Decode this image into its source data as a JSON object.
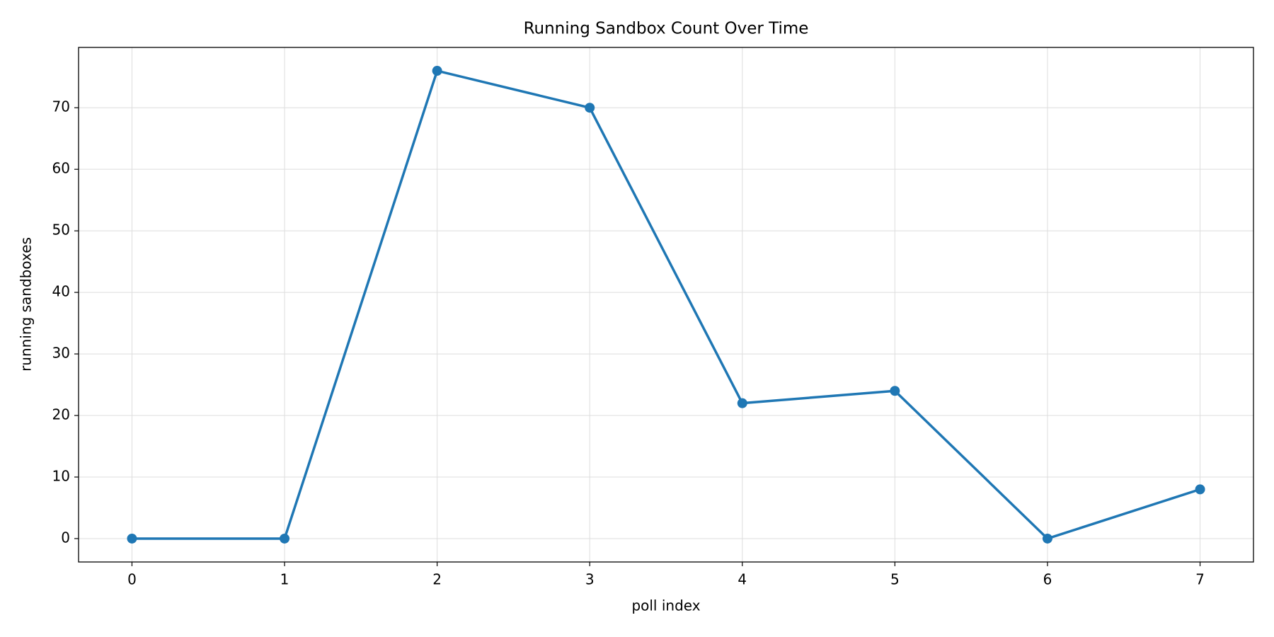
{
  "chart_data": {
    "type": "line",
    "title": "Running Sandbox Count Over Time",
    "x_label": "poll index",
    "y_label": "running sandboxes",
    "x": [
      0,
      1,
      2,
      3,
      4,
      5,
      6,
      7
    ],
    "series": [
      {
        "name": "running sandboxes",
        "color": "#1f77b4",
        "values": [
          0,
          0,
          76,
          70,
          22,
          24,
          0,
          8
        ]
      }
    ],
    "xlim": [
      -0.35,
      7.35
    ],
    "xticks": [
      0,
      1,
      2,
      3,
      4,
      5,
      6,
      7
    ],
    "ylim": [
      -3.8,
      79.8
    ],
    "yticks": [
      0,
      10,
      20,
      30,
      40,
      50,
      60,
      70
    ],
    "grid": true
  }
}
